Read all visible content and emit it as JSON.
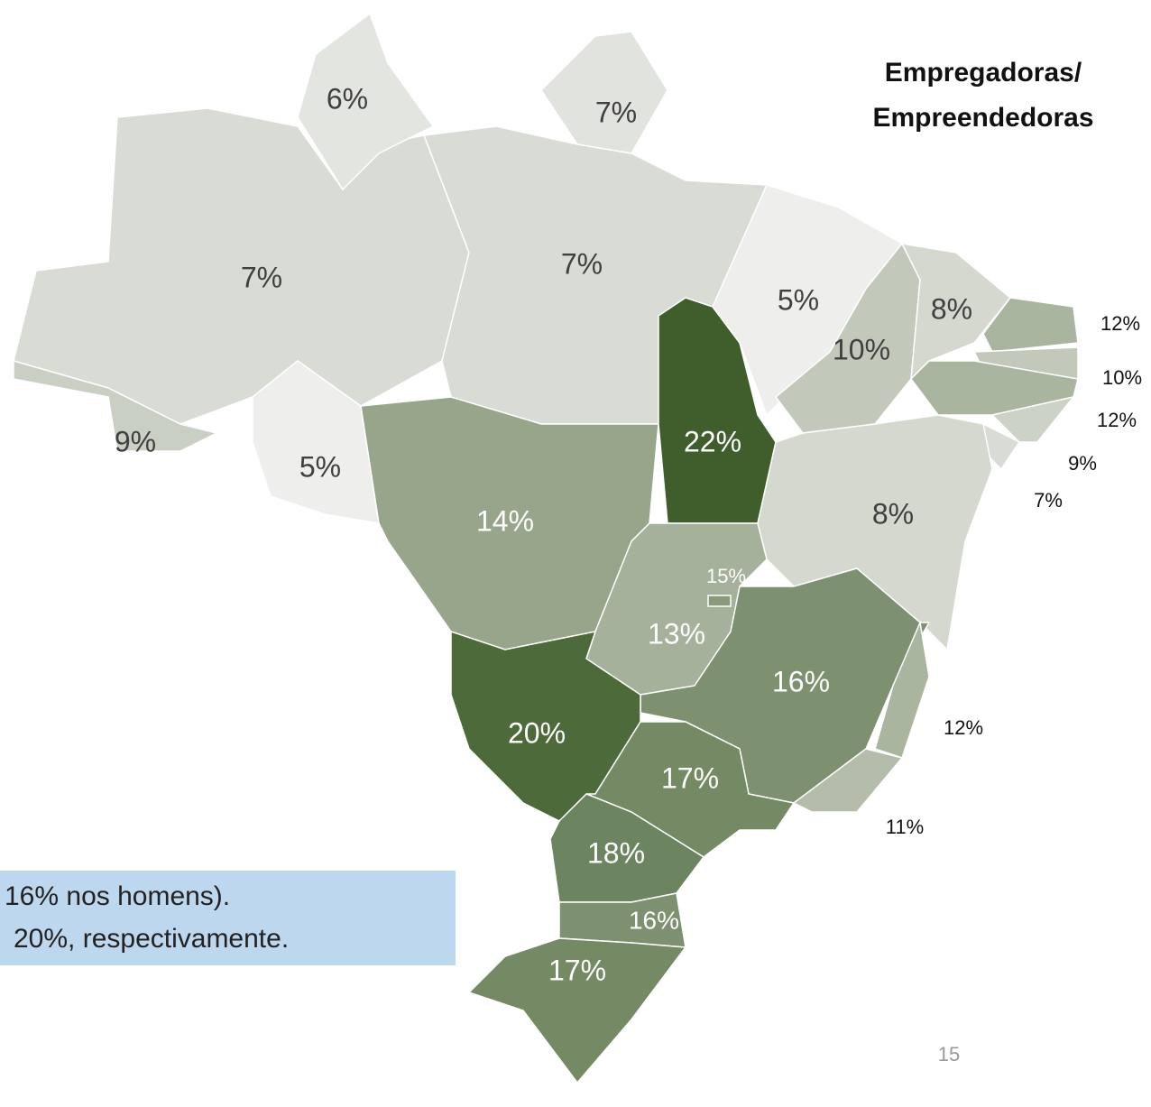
{
  "title_lines": [
    "Empregadoras/",
    "Empreendedoras"
  ],
  "note_lines": [
    "16% nos homens).",
    "20%, respectivamente."
  ],
  "page_number": "15",
  "regions": [
    {
      "label": "7%",
      "color": "#d9dcd5"
    },
    {
      "label": "6%",
      "color": "#e3e5e0"
    },
    {
      "label": "7%",
      "color": "#e1e3de"
    },
    {
      "label": "7%",
      "color": "#d9dcd5"
    },
    {
      "label": "9%",
      "color": "#c9cfc2"
    },
    {
      "label": "5%",
      "color": "#eeefec"
    },
    {
      "label": "14%",
      "color": "#97a68a"
    },
    {
      "label": "22%",
      "color": "#3f5e2c"
    },
    {
      "label": "5%",
      "color": "#eeefec"
    },
    {
      "label": "10%",
      "color": "#c2c9bb"
    },
    {
      "label": "8%",
      "color": "#d4d8ce"
    },
    {
      "label": "12%",
      "color": "#aab5a0"
    },
    {
      "label": "10%",
      "color": "#c2c9bb"
    },
    {
      "label": "12%",
      "color": "#aab5a0"
    },
    {
      "label": "9%",
      "color": "#ccd2c5"
    },
    {
      "label": "7%",
      "color": "#d9dcd5"
    },
    {
      "label": "8%",
      "color": "#d4d8ce"
    },
    {
      "label": "13%",
      "color": "#a6b19b"
    },
    {
      "label": "15%",
      "color": "#8a9b7c"
    },
    {
      "label": "16%",
      "color": "#7d9170"
    },
    {
      "label": "12%",
      "color": "#aab5a0"
    },
    {
      "label": "11%",
      "color": "#b3bdaa"
    },
    {
      "label": "20%",
      "color": "#4d6a3a"
    },
    {
      "label": "17%",
      "color": "#748a64"
    },
    {
      "label": "18%",
      "color": "#6c8460"
    },
    {
      "label": "16%",
      "color": "#7d9170"
    },
    {
      "label": "17%",
      "color": "#748a64"
    }
  ]
}
